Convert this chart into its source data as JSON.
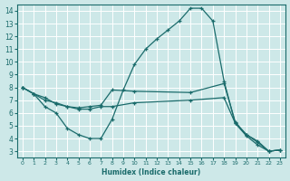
{
  "xlabel": "Humidex (Indice chaleur)",
  "bg_color": "#cde8e8",
  "grid_color": "#ffffff",
  "line_color": "#1a6b6b",
  "xlim": [
    -0.5,
    23.5
  ],
  "ylim": [
    2.5,
    14.5
  ],
  "xticks": [
    0,
    1,
    2,
    3,
    4,
    5,
    6,
    7,
    8,
    9,
    10,
    11,
    12,
    13,
    14,
    15,
    16,
    17,
    18,
    19,
    20,
    21,
    22,
    23
  ],
  "yticks": [
    3,
    4,
    5,
    6,
    7,
    8,
    9,
    10,
    11,
    12,
    13,
    14
  ],
  "line1_x": [
    0,
    1,
    2,
    3,
    4,
    5,
    6,
    7,
    8,
    9,
    10,
    11,
    12,
    13,
    14,
    15,
    16,
    17,
    18,
    19,
    20,
    21,
    22,
    23
  ],
  "line1_y": [
    8.0,
    7.5,
    6.5,
    6.0,
    4.8,
    4.3,
    4.0,
    4.0,
    5.5,
    7.8,
    9.8,
    11.0,
    11.8,
    12.5,
    13.2,
    14.2,
    14.2,
    13.2,
    8.5,
    5.2,
    4.2,
    3.5,
    3.0,
    3.1
  ],
  "line2_x": [
    0,
    1,
    2,
    3,
    4,
    5,
    6,
    7,
    8,
    10,
    15,
    18,
    19,
    20,
    21,
    22,
    23
  ],
  "line2_y": [
    8.0,
    7.5,
    7.2,
    6.7,
    6.5,
    6.4,
    6.5,
    6.6,
    7.8,
    7.7,
    7.6,
    8.3,
    5.3,
    4.3,
    3.8,
    3.0,
    3.1
  ],
  "line3_x": [
    0,
    1,
    2,
    3,
    4,
    5,
    6,
    7,
    8,
    10,
    15,
    18,
    19,
    20,
    21,
    22,
    23
  ],
  "line3_y": [
    8.0,
    7.5,
    7.0,
    6.8,
    6.5,
    6.3,
    6.3,
    6.5,
    6.5,
    6.8,
    7.0,
    7.2,
    5.2,
    4.3,
    3.7,
    3.0,
    3.1
  ]
}
